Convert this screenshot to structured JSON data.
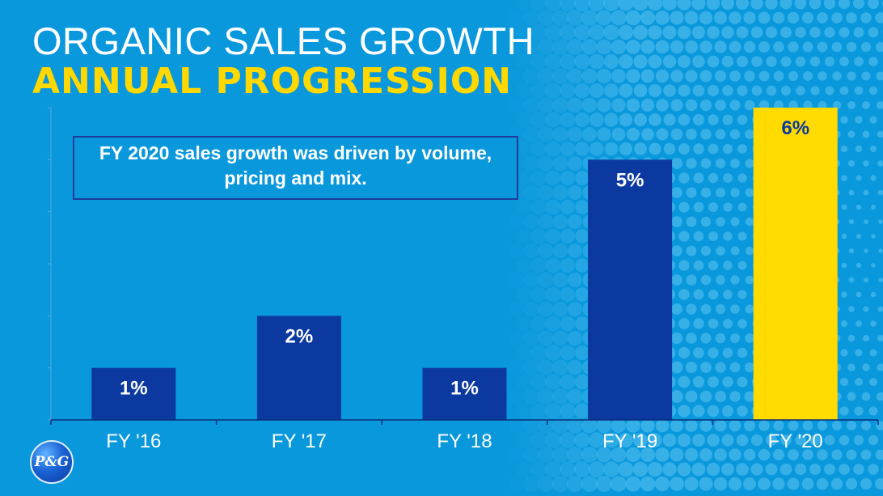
{
  "title": {
    "line1": "ORGANIC SALES GROWTH",
    "line2": "ANNUAL PROGRESSION"
  },
  "callout": {
    "text": "FY 2020 sales growth was driven by volume, pricing and mix."
  },
  "logo": {
    "text": "P&G"
  },
  "colors": {
    "background": "#0a98dc",
    "bar_default": "#0b39a0",
    "bar_highlight": "#ffdb00",
    "label_on_dark": "#ffffff",
    "label_on_highlight": "#0b39a0",
    "title_accent": "#ffd800"
  },
  "chart_data": {
    "type": "bar",
    "categories": [
      "FY '16",
      "FY '17",
      "FY '18",
      "FY '19",
      "FY '20"
    ],
    "values": [
      1,
      2,
      1,
      5,
      6
    ],
    "data_labels": [
      "1%",
      "2%",
      "1%",
      "5%",
      "6%"
    ],
    "highlight_index": 4,
    "ylim": [
      0,
      6
    ],
    "grid": false,
    "xlabel": "",
    "ylabel": ""
  }
}
